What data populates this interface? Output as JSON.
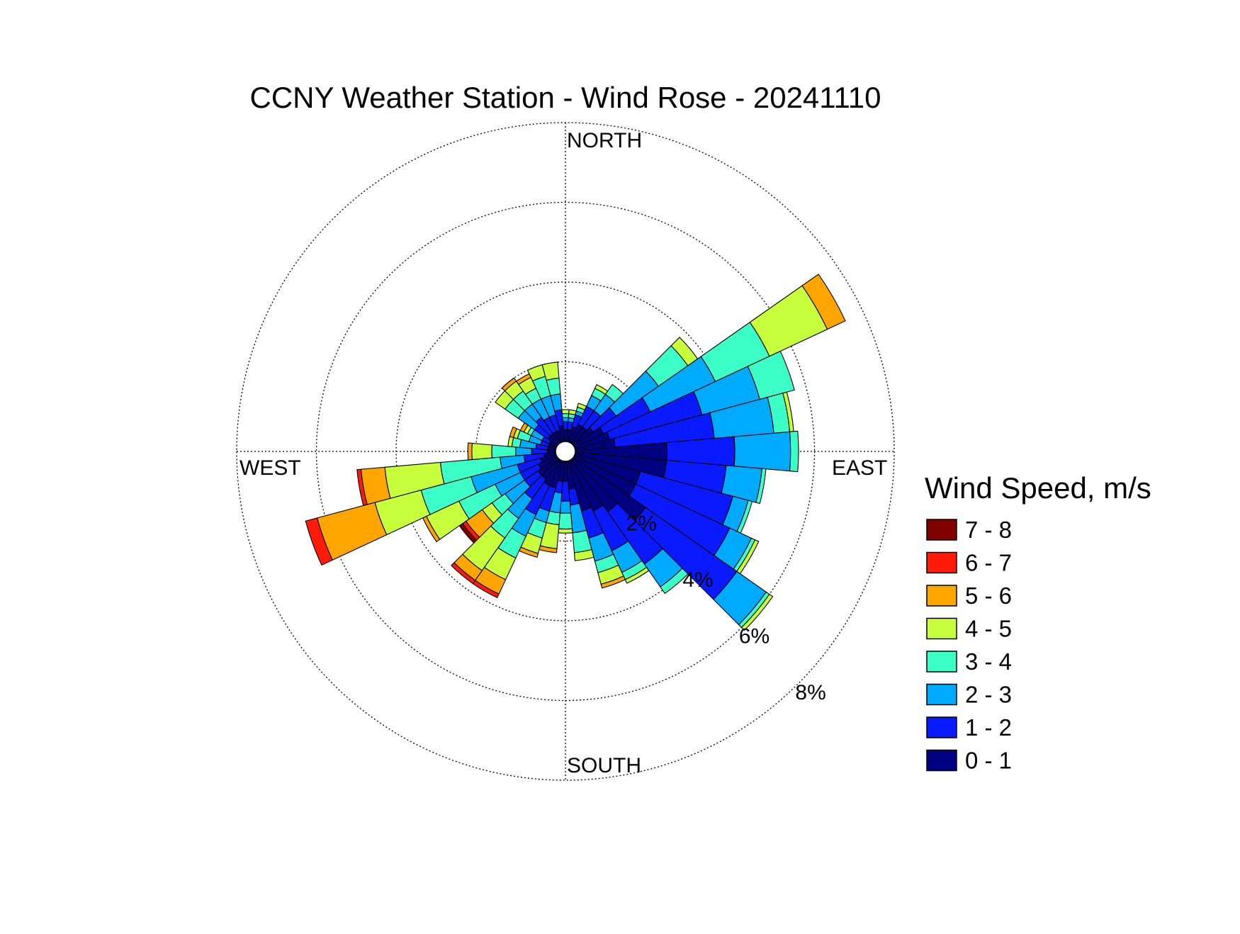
{
  "chart_data": {
    "type": "wind-rose",
    "title": "CCNY Weather Station - Wind Rose - 20241110",
    "directions": {
      "north": "NORTH",
      "east": "EAST",
      "south": "SOUTH",
      "west": "WEST"
    },
    "ring_values": [
      2,
      4,
      6,
      8
    ],
    "ring_labels": [
      "2%",
      "4%",
      "6%",
      "8%"
    ],
    "r_max_percent": 8,
    "grid": true,
    "legend": {
      "title": "Wind Speed, m/s",
      "placement": "right",
      "bins": [
        {
          "label": "7 - 8",
          "color": "#800000"
        },
        {
          "label": "6 - 7",
          "color": "#ff1a0a"
        },
        {
          "label": "5 - 6",
          "color": "#ffa500"
        },
        {
          "label": "4 - 5",
          "color": "#c8ff3c"
        },
        {
          "label": "3 - 4",
          "color": "#3cffc8"
        },
        {
          "label": "2 - 3",
          "color": "#00aaff"
        },
        {
          "label": "1 - 2",
          "color": "#0a1aff"
        },
        {
          "label": "0 - 1",
          "color": "#000080"
        }
      ]
    },
    "speed_bins": [
      "0 - 1",
      "1 - 2",
      "2 - 3",
      "3 - 4",
      "4 - 5",
      "5 - 6",
      "6 - 7",
      "7 - 8"
    ],
    "sector_width_deg": 10,
    "sectors": [
      {
        "direction_deg": 0,
        "cumulative_percent": [
          0.3,
          0.5,
          0.6,
          0.7,
          0.8
        ]
      },
      {
        "direction_deg": 10,
        "cumulative_percent": [
          0.3,
          0.5,
          0.6,
          0.7,
          0.8
        ]
      },
      {
        "direction_deg": 20,
        "cumulative_percent": [
          0.4,
          0.7,
          0.8,
          0.9,
          1.0
        ]
      },
      {
        "direction_deg": 30,
        "cumulative_percent": [
          0.5,
          1.0,
          1.3,
          1.5,
          1.6
        ]
      },
      {
        "direction_deg": 40,
        "cumulative_percent": [
          0.5,
          1.0,
          1.5,
          1.8
        ]
      },
      {
        "direction_deg": 50,
        "cumulative_percent": [
          0.6,
          1.3,
          2.6,
          3.5,
          3.8
        ]
      },
      {
        "direction_deg": 60,
        "cumulative_percent": [
          0.8,
          2.1,
          3.9,
          5.4,
          7.0,
          7.5
        ]
      },
      {
        "direction_deg": 70,
        "cumulative_percent": [
          0.9,
          3.3,
          4.8,
          5.7
        ]
      },
      {
        "direction_deg": 80,
        "cumulative_percent": [
          1.0,
          3.5,
          5.0,
          5.4,
          5.5
        ]
      },
      {
        "direction_deg": 90,
        "cumulative_percent": [
          2.3,
          4.0,
          5.4,
          5.6
        ]
      },
      {
        "direction_deg": 100,
        "cumulative_percent": [
          2.3,
          3.8,
          4.7,
          4.8
        ]
      },
      {
        "direction_deg": 110,
        "cumulative_percent": [
          1.7,
          4.1,
          4.5,
          4.6
        ]
      },
      {
        "direction_deg": 120,
        "cumulative_percent": [
          1.7,
          4.3,
          4.9,
          5.0,
          5.1
        ]
      },
      {
        "direction_deg": 130,
        "cumulative_percent": [
          2.2,
          5.0,
          5.9,
          6.0,
          6.1
        ]
      },
      {
        "direction_deg": 140,
        "cumulative_percent": [
          1.6,
          3.2,
          3.9,
          4.1
        ]
      },
      {
        "direction_deg": 150,
        "cumulative_percent": [
          1.4,
          2.5,
          3.1,
          3.3,
          3.4
        ]
      },
      {
        "direction_deg": 160,
        "cumulative_percent": [
          1.3,
          2.0,
          2.6,
          2.9,
          3.2,
          3.3
        ]
      },
      {
        "direction_deg": 170,
        "cumulative_percent": [
          0.7,
          1.1,
          1.8,
          2.3,
          2.5
        ]
      },
      {
        "direction_deg": 180,
        "cumulative_percent": [
          0.5,
          1.0,
          1.3,
          1.7,
          1.8
        ]
      },
      {
        "direction_deg": 190,
        "cumulative_percent": [
          0.5,
          0.8,
          1.3,
          1.6,
          2.2,
          2.3
        ]
      },
      {
        "direction_deg": 200,
        "cumulative_percent": [
          0.7,
          1.3,
          1.6,
          2.0,
          2.4,
          2.5
        ]
      },
      {
        "direction_deg": 210,
        "cumulative_percent": [
          0.7,
          1.5,
          2.1,
          2.7,
          3.3,
          3.7,
          3.8
        ]
      },
      {
        "direction_deg": 220,
        "cumulative_percent": [
          0.6,
          1.2,
          1.8,
          2.4,
          3.4,
          3.7,
          3.8
        ]
      },
      {
        "direction_deg": 230,
        "cumulative_percent": [
          0.6,
          1.0,
          1.6,
          2.0,
          2.3,
          2.8,
          2.9,
          3.0
        ]
      },
      {
        "direction_deg": 240,
        "cumulative_percent": [
          0.5,
          1.0,
          1.7,
          2.7,
          3.6,
          3.7
        ]
      },
      {
        "direction_deg": 250,
        "cumulative_percent": [
          0.4,
          1.0,
          2.2,
          3.5,
          4.7,
          6.2,
          6.5
        ]
      },
      {
        "direction_deg": 260,
        "cumulative_percent": [
          0.3,
          0.8,
          1.4,
          2.9,
          4.3,
          4.9,
          5.0
        ]
      },
      {
        "direction_deg": 270,
        "cumulative_percent": [
          0.2,
          0.6,
          1.0,
          1.6,
          2.1,
          2.2
        ]
      },
      {
        "direction_deg": 280,
        "cumulative_percent": [
          0.2,
          0.5,
          0.9,
          1.1,
          1.2
        ]
      },
      {
        "direction_deg": 290,
        "cumulative_percent": [
          0.2,
          0.4,
          0.7,
          1.0,
          1.1,
          1.2
        ]
      },
      {
        "direction_deg": 300,
        "cumulative_percent": [
          0.2,
          0.4,
          0.7,
          0.8,
          0.9,
          1.0
        ]
      },
      {
        "direction_deg": 310,
        "cumulative_percent": [
          0.3,
          0.7,
          1.2,
          1.6,
          1.9
        ]
      },
      {
        "direction_deg": 320,
        "cumulative_percent": [
          0.3,
          0.8,
          1.2,
          1.6,
          1.9,
          2.0
        ]
      },
      {
        "direction_deg": 330,
        "cumulative_percent": [
          0.3,
          0.7,
          1.2,
          1.5,
          1.8,
          1.9
        ]
      },
      {
        "direction_deg": 340,
        "cumulative_percent": [
          0.3,
          0.7,
          1.2,
          1.7,
          2.0
        ]
      },
      {
        "direction_deg": 350,
        "cumulative_percent": [
          0.4,
          0.8,
          1.2,
          1.6,
          2.0
        ]
      }
    ]
  }
}
